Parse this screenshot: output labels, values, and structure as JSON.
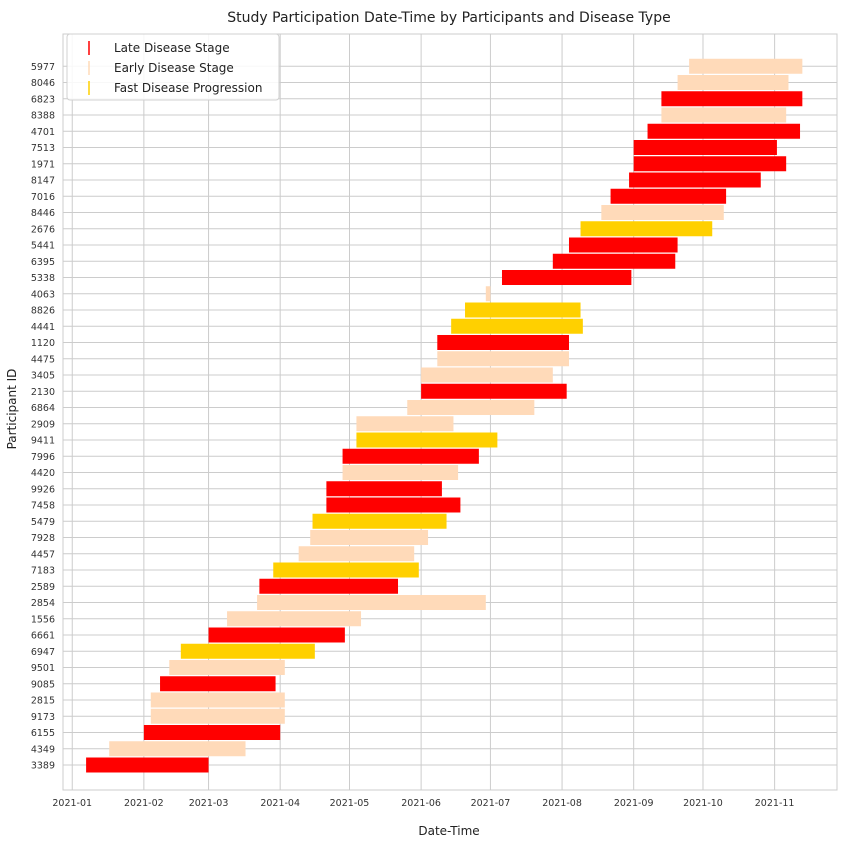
{
  "chart_data": {
    "type": "bar",
    "orientation": "horizontal-gantt",
    "title": "Study Participation Date-Time by Participants and Disease Type",
    "xlabel": "Date-Time",
    "ylabel": "Participant ID",
    "xlim": [
      "2020-12-28",
      "2021-11-28"
    ],
    "x_ticks": [
      "2021-01",
      "2021-02",
      "2021-03",
      "2021-04",
      "2021-05",
      "2021-06",
      "2021-07",
      "2021-08",
      "2021-09",
      "2021-10",
      "2021-11"
    ],
    "grid": true,
    "legend_position": "top-left",
    "series": [
      {
        "name": "Late Disease Stage",
        "color": "#ff0000"
      },
      {
        "name": "Early Disease Stage",
        "color": "#ffdab9"
      },
      {
        "name": "Fast Disease Progression",
        "color": "#ffd000"
      }
    ],
    "rows": [
      {
        "id": "3389",
        "series": 0,
        "start": "2021-01-07",
        "end": "2021-03-01"
      },
      {
        "id": "4349",
        "series": 1,
        "start": "2021-01-17",
        "end": "2021-03-17"
      },
      {
        "id": "6155",
        "series": 0,
        "start": "2021-02-01",
        "end": "2021-04-01"
      },
      {
        "id": "9173",
        "series": 1,
        "start": "2021-02-04",
        "end": "2021-04-03"
      },
      {
        "id": "2815",
        "series": 1,
        "start": "2021-02-04",
        "end": "2021-04-03"
      },
      {
        "id": "9085",
        "series": 0,
        "start": "2021-02-08",
        "end": "2021-03-30"
      },
      {
        "id": "9501",
        "series": 1,
        "start": "2021-02-12",
        "end": "2021-04-03"
      },
      {
        "id": "6947",
        "series": 2,
        "start": "2021-02-17",
        "end": "2021-04-16"
      },
      {
        "id": "6661",
        "series": 0,
        "start": "2021-03-01",
        "end": "2021-04-29"
      },
      {
        "id": "1556",
        "series": 1,
        "start": "2021-03-09",
        "end": "2021-05-06"
      },
      {
        "id": "2854",
        "series": 1,
        "start": "2021-03-22",
        "end": "2021-06-29"
      },
      {
        "id": "2589",
        "series": 0,
        "start": "2021-03-23",
        "end": "2021-05-22"
      },
      {
        "id": "7183",
        "series": 2,
        "start": "2021-03-29",
        "end": "2021-05-31"
      },
      {
        "id": "4457",
        "series": 1,
        "start": "2021-04-09",
        "end": "2021-05-29"
      },
      {
        "id": "7928",
        "series": 1,
        "start": "2021-04-14",
        "end": "2021-06-04"
      },
      {
        "id": "5479",
        "series": 2,
        "start": "2021-04-15",
        "end": "2021-06-12"
      },
      {
        "id": "7458",
        "series": 0,
        "start": "2021-04-21",
        "end": "2021-06-18"
      },
      {
        "id": "9926",
        "series": 0,
        "start": "2021-04-21",
        "end": "2021-06-10"
      },
      {
        "id": "4420",
        "series": 1,
        "start": "2021-04-28",
        "end": "2021-06-17"
      },
      {
        "id": "7996",
        "series": 0,
        "start": "2021-04-28",
        "end": "2021-06-26"
      },
      {
        "id": "9411",
        "series": 2,
        "start": "2021-05-04",
        "end": "2021-07-04"
      },
      {
        "id": "2909",
        "series": 1,
        "start": "2021-05-04",
        "end": "2021-06-15"
      },
      {
        "id": "6864",
        "series": 1,
        "start": "2021-05-26",
        "end": "2021-07-20"
      },
      {
        "id": "2130",
        "series": 0,
        "start": "2021-06-01",
        "end": "2021-08-03"
      },
      {
        "id": "3405",
        "series": 1,
        "start": "2021-06-01",
        "end": "2021-07-28"
      },
      {
        "id": "4475",
        "series": 1,
        "start": "2021-06-08",
        "end": "2021-08-04"
      },
      {
        "id": "1120",
        "series": 0,
        "start": "2021-06-08",
        "end": "2021-08-04"
      },
      {
        "id": "4441",
        "series": 2,
        "start": "2021-06-14",
        "end": "2021-08-10"
      },
      {
        "id": "8826",
        "series": 2,
        "start": "2021-06-20",
        "end": "2021-08-09"
      },
      {
        "id": "4063",
        "series": 1,
        "start": "2021-06-29",
        "end": "2021-07-01"
      },
      {
        "id": "5338",
        "series": 0,
        "start": "2021-07-06",
        "end": "2021-08-31"
      },
      {
        "id": "6395",
        "series": 0,
        "start": "2021-07-28",
        "end": "2021-09-19"
      },
      {
        "id": "5441",
        "series": 0,
        "start": "2021-08-04",
        "end": "2021-09-20"
      },
      {
        "id": "2676",
        "series": 2,
        "start": "2021-08-09",
        "end": "2021-10-05"
      },
      {
        "id": "8446",
        "series": 1,
        "start": "2021-08-18",
        "end": "2021-10-10"
      },
      {
        "id": "7016",
        "series": 0,
        "start": "2021-08-22",
        "end": "2021-10-11"
      },
      {
        "id": "8147",
        "series": 0,
        "start": "2021-08-30",
        "end": "2021-10-26"
      },
      {
        "id": "1971",
        "series": 0,
        "start": "2021-09-01",
        "end": "2021-11-06"
      },
      {
        "id": "7513",
        "series": 0,
        "start": "2021-09-01",
        "end": "2021-11-02"
      },
      {
        "id": "4701",
        "series": 0,
        "start": "2021-09-07",
        "end": "2021-11-12"
      },
      {
        "id": "8388",
        "series": 1,
        "start": "2021-09-13",
        "end": "2021-11-06"
      },
      {
        "id": "6823",
        "series": 0,
        "start": "2021-09-13",
        "end": "2021-11-13"
      },
      {
        "id": "8046",
        "series": 1,
        "start": "2021-09-20",
        "end": "2021-11-07"
      },
      {
        "id": "5977",
        "series": 1,
        "start": "2021-09-25",
        "end": "2021-11-13"
      }
    ]
  }
}
